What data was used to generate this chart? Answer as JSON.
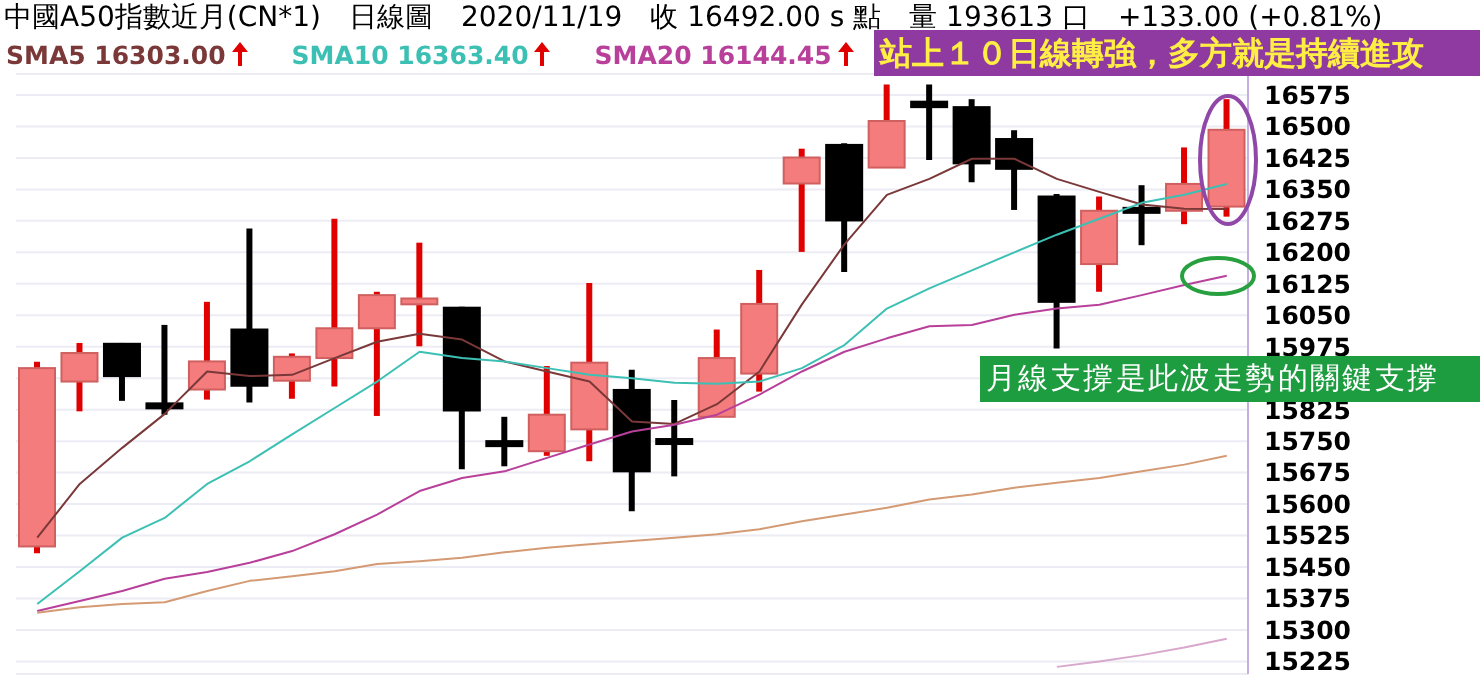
{
  "chart_data": {
    "type": "candlestick",
    "title": "中國A50指數近月(CN*1)　日線圖　2020/11/19　收 16492.00 s 點　量 193613 口　+133.00 (+0.81%)",
    "categories": [
      null,
      null,
      null,
      null,
      null,
      null,
      null,
      null,
      null,
      null,
      null,
      null,
      null,
      null,
      null,
      null,
      null,
      null,
      null,
      null,
      null,
      null,
      null,
      null,
      null,
      null,
      null,
      null,
      null
    ],
    "ohlc": [
      [
        15499,
        15939,
        15483,
        15924
      ],
      [
        15892,
        15984,
        15821,
        15960
      ],
      [
        15982,
        15984,
        15846,
        15905
      ],
      [
        15840,
        16027,
        15813,
        15835
      ],
      [
        15873,
        16082,
        15849,
        15940
      ],
      [
        16016,
        16257,
        15842,
        15882
      ],
      [
        15894,
        15959,
        15851,
        15951
      ],
      [
        15948,
        16280,
        15880,
        16019
      ],
      [
        16019,
        16106,
        15810,
        16098
      ],
      [
        16076,
        16223,
        15976,
        16090
      ],
      [
        16068,
        16070,
        15683,
        15823
      ],
      [
        15750,
        15808,
        15690,
        15745
      ],
      [
        15726,
        15929,
        15715,
        15813
      ],
      [
        15778,
        16127,
        15702,
        15937
      ],
      [
        15872,
        15920,
        15583,
        15678
      ],
      [
        15755,
        15848,
        15666,
        15750
      ],
      [
        15808,
        16016,
        15808,
        15948
      ],
      [
        15911,
        16158,
        15868,
        16077
      ],
      [
        16364,
        16447,
        16201,
        16426
      ],
      [
        16456,
        16460,
        16153,
        16276
      ],
      [
        16402,
        16600,
        16402,
        16513
      ],
      [
        16559,
        16600,
        16420,
        16546
      ],
      [
        16546,
        16565,
        16367,
        16412
      ],
      [
        16470,
        16491,
        16301,
        16399
      ],
      [
        16333,
        16339,
        15971,
        16082
      ],
      [
        16172,
        16333,
        16106,
        16299
      ],
      [
        16306,
        16360,
        16217,
        16300
      ],
      [
        16299,
        16450,
        16267,
        16363
      ],
      [
        16309,
        16565,
        16285,
        16492
      ]
    ],
    "series": [
      {
        "type": "line",
        "name": "SMA5 16303.00",
        "color": "#7a3838",
        "values": [
          15520,
          15648,
          15734,
          15815,
          15916,
          15905,
          15908,
          15948,
          15987,
          16006,
          15992,
          15940,
          15916,
          15892,
          15797,
          15791,
          15838,
          15916,
          16076,
          16219,
          16337,
          16375,
          16423,
          16423,
          16375,
          16344,
          16314,
          16304,
          16303
        ]
      },
      {
        "type": "line",
        "name": "SMA10 16363.40",
        "color": "#3cc0b4",
        "values": [
          15362,
          15440,
          15520,
          15567,
          15648,
          15702,
          15766,
          15829,
          15892,
          15963,
          15948,
          15940,
          15924,
          15908,
          15900,
          15889,
          15887,
          15892,
          15924,
          15979,
          16066,
          16114,
          16157,
          16200,
          16242,
          16280,
          16318,
          16337,
          16363
        ]
      },
      {
        "type": "line",
        "name": "SMA20 16144.45",
        "color": "#b8409a",
        "values": [
          15345,
          15369,
          15393,
          15422,
          15438,
          15460,
          15488,
          15528,
          15575,
          15631,
          15662,
          15678,
          15710,
          15742,
          15773,
          15789,
          15813,
          15861,
          15916,
          15963,
          15995,
          16024,
          16027,
          16051,
          16066,
          16075,
          16098,
          16122,
          16144
        ]
      },
      {
        "type": "line",
        "color": "#d49a74",
        "values": [
          15341,
          15354,
          15362,
          15366,
          15393,
          15417,
          15428,
          15440,
          15457,
          15464,
          15472,
          15485,
          15496,
          15504,
          15512,
          15520,
          15528,
          15540,
          15559,
          15575,
          15591,
          15611,
          15623,
          15639,
          15651,
          15662,
          15678,
          15694,
          15715
        ]
      },
      {
        "type": "line",
        "color": "#d8a8cc",
        "values": [
          null,
          null,
          null,
          null,
          null,
          null,
          null,
          null,
          null,
          null,
          null,
          null,
          null,
          null,
          null,
          null,
          null,
          null,
          null,
          null,
          null,
          null,
          null,
          null,
          15212,
          15225,
          15240,
          15258,
          15279
        ]
      }
    ],
    "ylim": [
      15195,
      16625
    ],
    "yticks": [
      15225,
      15300,
      15375,
      15450,
      15525,
      15600,
      15675,
      15750,
      15825,
      {
        "value": 15900,
        "label": null
      },
      15975,
      16050,
      16125,
      16200,
      16275,
      16350,
      16425,
      16500,
      16575
    ],
    "grid": "y",
    "tick_labels": "y",
    "legend": "top left",
    "marker": "none",
    "annotations": [
      "站上１０日線轉強，多方就是持續進攻",
      "月線支撐是此波走勢的關鍵支撐"
    ]
  }
}
